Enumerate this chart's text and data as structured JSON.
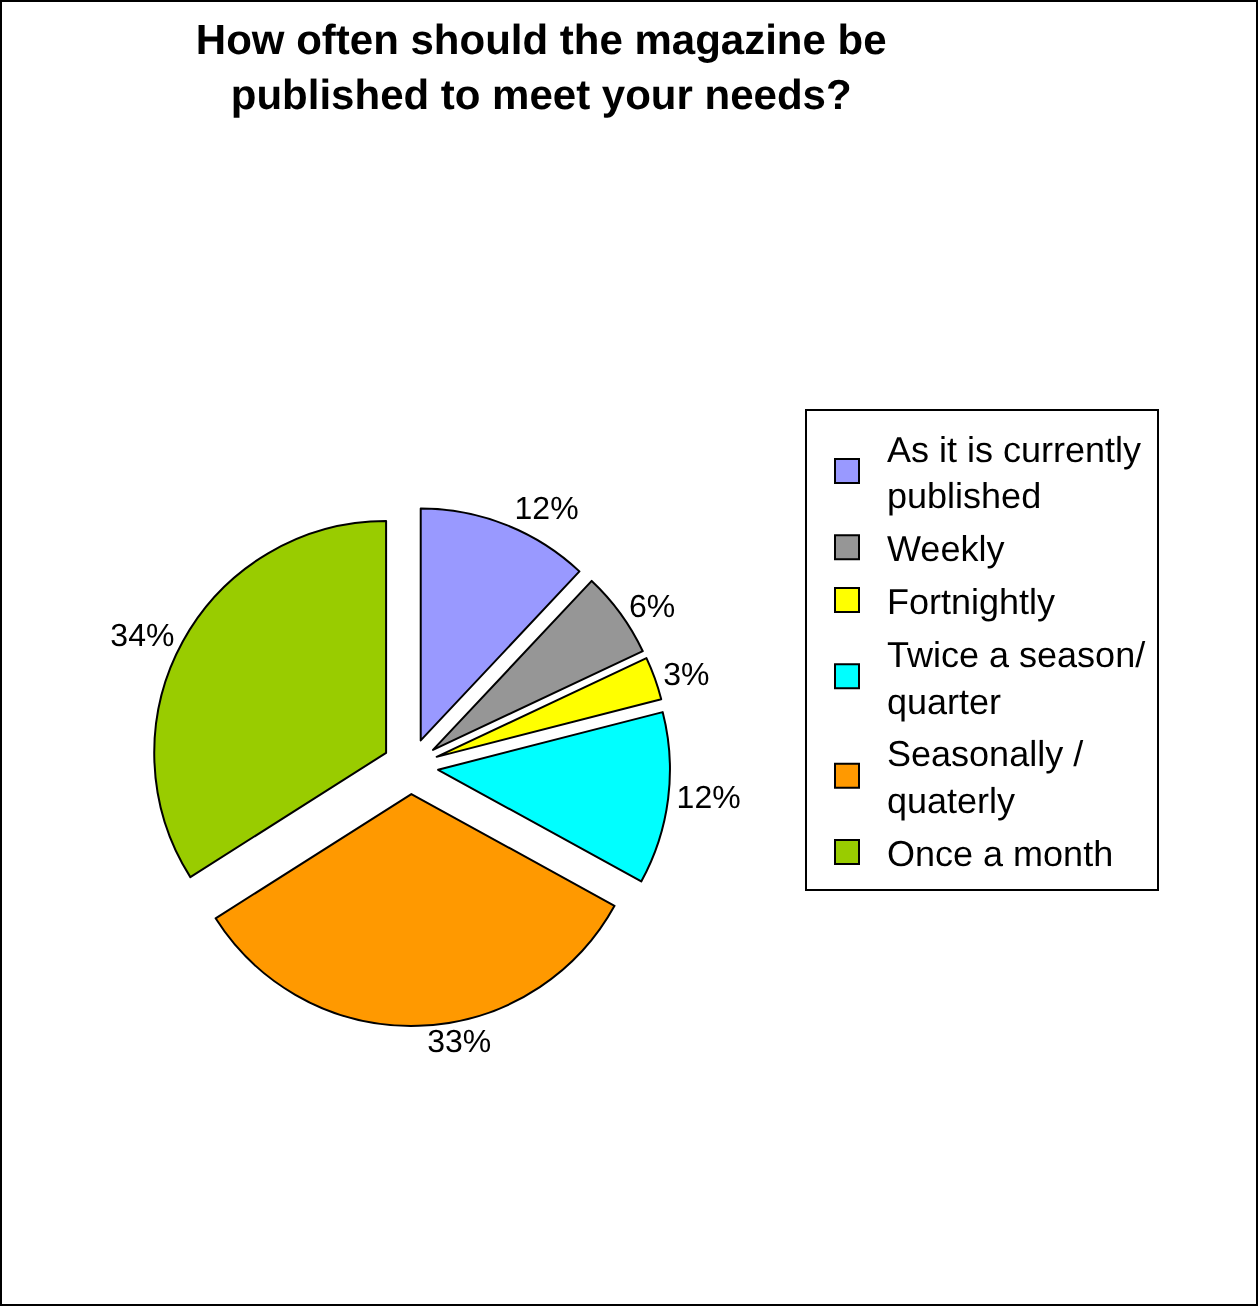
{
  "chart_data": {
    "type": "pie",
    "title": "How often should the magazine be published to meet your needs?",
    "categories": [
      "As it is currently published",
      "Weekly",
      "Fortnightly",
      "Twice a season/ quarter",
      "Seasonally / quaterly",
      "Once a month"
    ],
    "values": [
      12,
      6,
      3,
      12,
      33,
      34
    ],
    "colors": [
      "#9999ff",
      "#969696",
      "#ffff00",
      "#00ffff",
      "#ff9900",
      "#99cc00"
    ],
    "value_labels": [
      "12%",
      "6%",
      "3%",
      "12%",
      "33%",
      "34%"
    ],
    "legend": "right"
  }
}
